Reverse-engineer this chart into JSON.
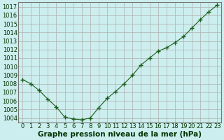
{
  "x": [
    0,
    1,
    2,
    3,
    4,
    5,
    6,
    7,
    8,
    9,
    10,
    11,
    12,
    13,
    14,
    15,
    16,
    17,
    18,
    19,
    20,
    21,
    22,
    23
  ],
  "y": [
    1008.5,
    1008.0,
    1007.2,
    1006.2,
    1005.3,
    1004.1,
    1003.9,
    1003.8,
    1004.0,
    1005.2,
    1006.3,
    1007.1,
    1008.0,
    1009.0,
    1010.2,
    1011.0,
    1011.8,
    1012.2,
    1012.8,
    1013.5,
    1014.5,
    1015.5,
    1016.4,
    1017.2
  ],
  "ylim_min": 1003.5,
  "ylim_max": 1017.5,
  "xlim_min": -0.5,
  "xlim_max": 23.5,
  "yticks": [
    1004,
    1005,
    1006,
    1007,
    1008,
    1009,
    1010,
    1011,
    1012,
    1013,
    1014,
    1015,
    1016,
    1017
  ],
  "xticks": [
    0,
    1,
    2,
    3,
    4,
    5,
    6,
    7,
    8,
    9,
    10,
    11,
    12,
    13,
    14,
    15,
    16,
    17,
    18,
    19,
    20,
    21,
    22,
    23
  ],
  "line_color": "#1a5c1a",
  "marker_color": "#1a5c1a",
  "bg_color": "#cceeee",
  "grid_color": "#b0b0b0",
  "grid_color_minor": "#d8d8d8",
  "border_color": "#777777",
  "xlabel": "Graphe pression niveau de la mer (hPa)",
  "xlabel_color": "#003300",
  "tick_color": "#003300",
  "xlabel_fontsize": 7.5,
  "tick_fontsize": 6.0
}
